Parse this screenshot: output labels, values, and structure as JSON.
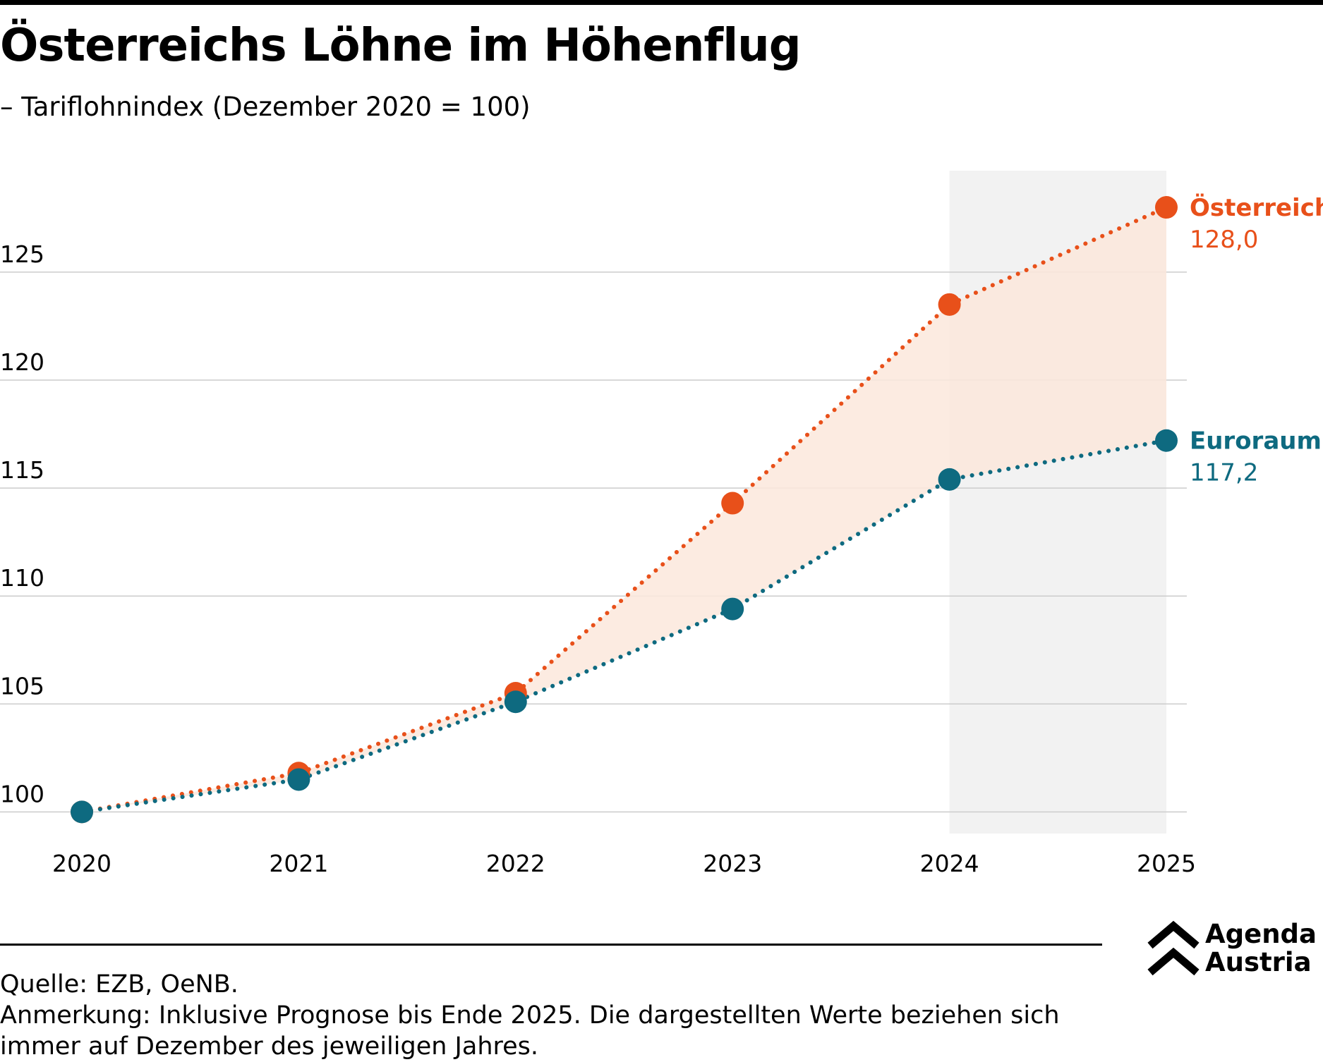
{
  "title": "Österreichs Löhne im Höhenflug",
  "subtitle": "– Tariflohnindex (Dezember 2020 = 100)",
  "source": "Quelle: EZB, OeNB.",
  "note": "Anmerkung: Inklusive Prognose bis Ende 2025. Die dargestellten Werte beziehen sich immer auf Dezember des jeweiligen Jahres.",
  "logo": {
    "line1": "Agenda",
    "line2": "Austria",
    "icon": "double-chevron-up-icon"
  },
  "colors": {
    "austria": "#E8501A",
    "euro": "#0E6A80",
    "fill": "#FBE7DC",
    "forecast": "#F2F2F2",
    "grid": "#CCCCCC"
  },
  "chart_data": {
    "type": "line",
    "x": [
      "2020",
      "2021",
      "2022",
      "2023",
      "2024",
      "2025"
    ],
    "series": [
      {
        "name": "Österreich",
        "values": [
          100.0,
          101.8,
          105.5,
          114.3,
          123.5,
          128.0
        ],
        "end_label": "128,0"
      },
      {
        "name": "Euroraum",
        "values": [
          100.0,
          101.5,
          105.1,
          109.4,
          115.4,
          117.2
        ],
        "end_label": "117,2"
      }
    ],
    "y_ticks": [
      100,
      105,
      110,
      115,
      120,
      125
    ],
    "ylim": [
      99,
      129.7
    ],
    "forecast_shade": [
      "2024",
      "2025"
    ],
    "grid": true,
    "line_style": "dotted",
    "area_between_series": true,
    "legend": "direct labels at line ends"
  }
}
